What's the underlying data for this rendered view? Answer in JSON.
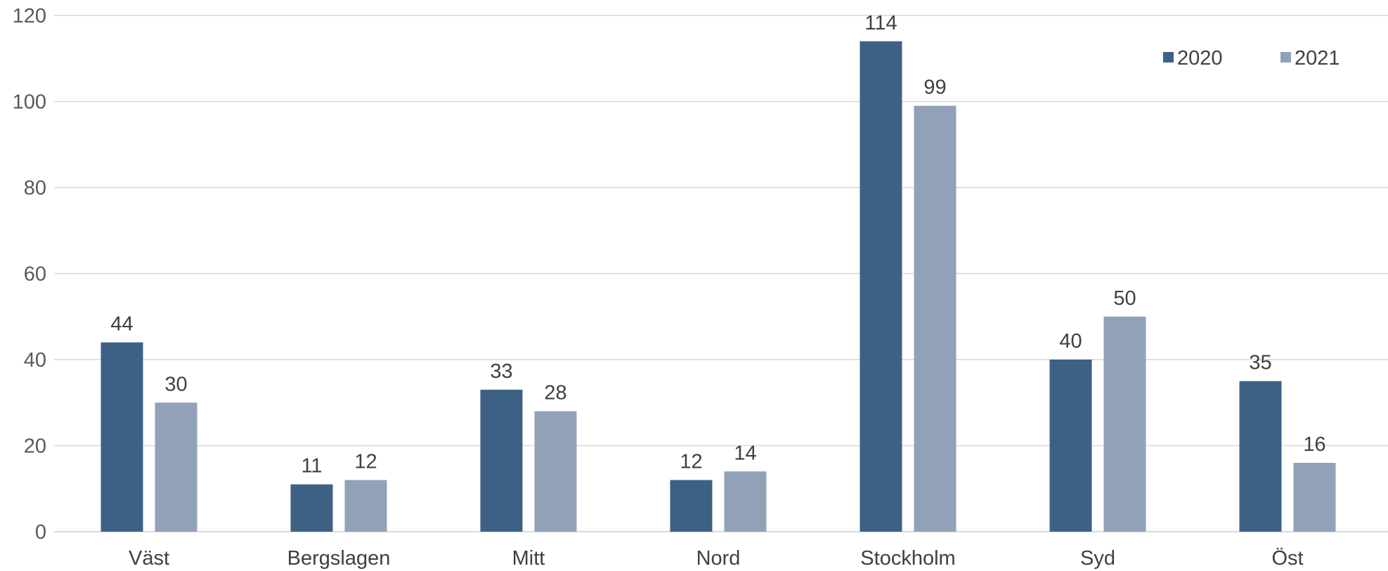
{
  "chart_data": {
    "type": "bar",
    "title": "",
    "xlabel": "",
    "ylabel": "",
    "categories": [
      "Väst",
      "Bergslagen",
      "Mitt",
      "Nord",
      "Stockholm",
      "Syd",
      "Öst"
    ],
    "series": [
      {
        "name": "2020",
        "color": "#3d6185",
        "values": [
          44,
          11,
          33,
          12,
          114,
          40,
          35
        ]
      },
      {
        "name": "2021",
        "color": "#91a2b8",
        "values": [
          30,
          12,
          28,
          14,
          99,
          50,
          16
        ]
      }
    ],
    "ylim": [
      0,
      120
    ],
    "yticks": [
      0,
      20,
      40,
      60,
      80,
      100,
      120
    ],
    "grid": true,
    "legend_position": "top-right",
    "data_labels": true
  }
}
